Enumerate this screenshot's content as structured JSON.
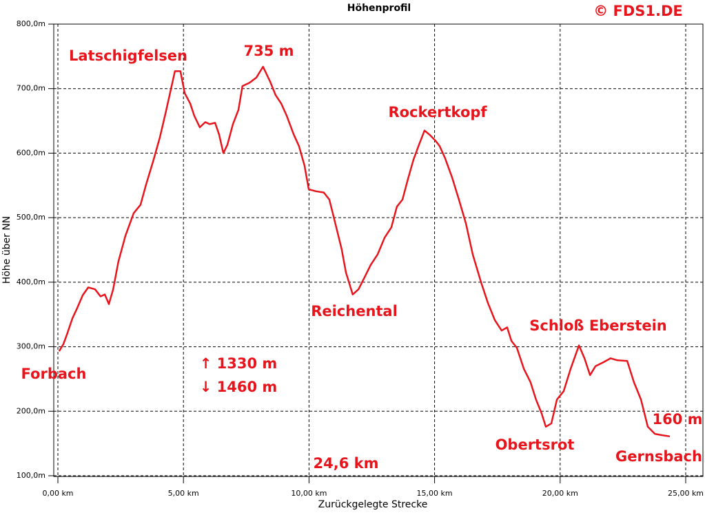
{
  "chart_data": {
    "type": "line",
    "title": "Höhenprofil",
    "credit": "© FDS1.DE",
    "ylabel": "Höhe über NN",
    "xlabel": "Zurückgelegte Strecke",
    "x": [
      0.05,
      0.22,
      0.38,
      0.58,
      0.77,
      0.99,
      1.21,
      1.48,
      1.7,
      1.87,
      2.03,
      2.2,
      2.41,
      2.69,
      3.02,
      3.29,
      3.51,
      3.79,
      4.06,
      4.28,
      4.5,
      4.66,
      4.88,
      5.05,
      5.27,
      5.43,
      5.65,
      5.87,
      6.04,
      6.26,
      6.42,
      6.59,
      6.75,
      6.97,
      7.19,
      7.35,
      7.63,
      7.9,
      8.17,
      8.45,
      8.67,
      8.89,
      9.11,
      9.39,
      9.6,
      9.82,
      9.99,
      10.26,
      10.59,
      10.81,
      11.03,
      11.3,
      11.47,
      11.74,
      11.97,
      12.18,
      12.46,
      12.73,
      13.01,
      13.28,
      13.5,
      13.72,
      13.94,
      14.16,
      14.38,
      14.6,
      14.82,
      15.04,
      15.2,
      15.42,
      15.7,
      15.97,
      16.25,
      16.52,
      16.85,
      17.12,
      17.4,
      17.67,
      17.89,
      18.06,
      18.28,
      18.55,
      18.82,
      19.04,
      19.26,
      19.43,
      19.65,
      19.87,
      20.14,
      20.42,
      20.75,
      20.97,
      21.19,
      21.41,
      21.68,
      22.01,
      22.28,
      22.67,
      22.94,
      23.22,
      23.49,
      23.77,
      24.04,
      24.37
    ],
    "series": [
      {
        "name": "Höhe",
        "color": "#e8141c",
        "values": [
          293,
          304,
          321,
          344,
          360,
          380,
          392,
          389,
          378,
          381,
          366,
          389,
          432,
          472,
          507,
          520,
          551,
          587,
          624,
          661,
          699,
          727,
          727,
          693,
          677,
          658,
          640,
          648,
          645,
          647,
          629,
          600,
          613,
          645,
          667,
          704,
          709,
          717,
          734,
          711,
          690,
          677,
          658,
          629,
          611,
          581,
          544,
          541,
          539,
          528,
          494,
          451,
          415,
          381,
          389,
          405,
          427,
          443,
          469,
          485,
          517,
          528,
          560,
          590,
          613,
          635,
          628,
          619,
          611,
          592,
          562,
          528,
          491,
          443,
          400,
          368,
          341,
          325,
          330,
          309,
          298,
          266,
          245,
          218,
          197,
          176,
          181,
          218,
          231,
          266,
          302,
          282,
          256,
          270,
          275,
          282,
          279,
          278,
          245,
          218,
          176,
          165,
          163,
          161
        ]
      }
    ],
    "xlim": [
      0,
      25
    ],
    "xticks": [
      {
        "value": 0,
        "label": "0,00 km"
      },
      {
        "value": 5,
        "label": "5,00 km"
      },
      {
        "value": 10,
        "label": "10,00 km"
      },
      {
        "value": 15,
        "label": "15,00 km"
      },
      {
        "value": 20,
        "label": "20,00 km"
      },
      {
        "value": 25,
        "label": "25,00 km"
      }
    ],
    "ylim": [
      100,
      800
    ],
    "yticks": [
      {
        "value": 100,
        "label": "100,0m"
      },
      {
        "value": 200,
        "label": "200,0m"
      },
      {
        "value": 300,
        "label": "300,0m"
      },
      {
        "value": 400,
        "label": "400,0m"
      },
      {
        "value": 500,
        "label": "500,0m"
      },
      {
        "value": 600,
        "label": "600,0m"
      },
      {
        "value": 700,
        "label": "700,0m"
      },
      {
        "value": 800,
        "label": "800,0m"
      }
    ],
    "grid": true,
    "annotations": [
      "Latschigfelsen",
      "735 m",
      "Rockertkopf",
      "Reichental",
      "Schloß Eberstein",
      "Forbach",
      "↑ 1330 m",
      "↓ 1460 m",
      "24,6 km",
      "Obertsrot",
      "160 m",
      "Gernsbach"
    ]
  }
}
